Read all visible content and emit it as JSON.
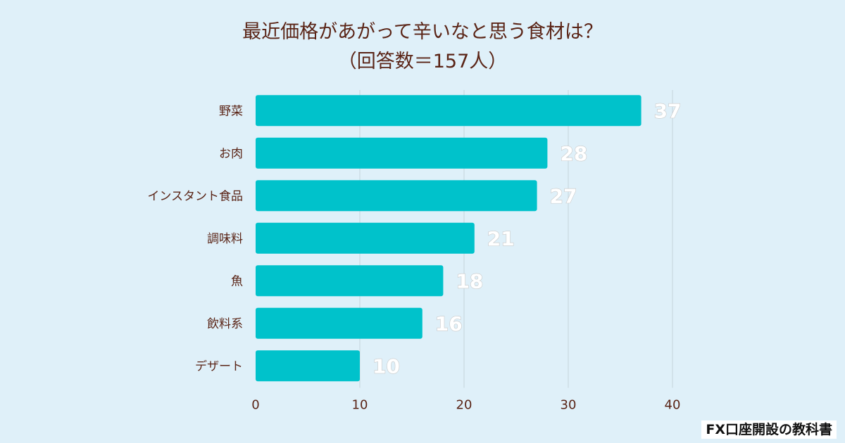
{
  "chart_data": {
    "type": "bar",
    "orientation": "horizontal",
    "title": "最近価格があがって辛いなと思う食材は？",
    "subtitle": "（回答数＝157人）",
    "categories": [
      "野菜",
      "お肉",
      "インスタント食品",
      "調味料",
      "魚",
      "飲料系",
      "デザート"
    ],
    "values": [
      37,
      28,
      27,
      21,
      18,
      16,
      10
    ],
    "xlim": [
      0,
      40
    ],
    "xticks": [
      "0",
      "10",
      "20",
      "30",
      "40"
    ],
    "grid": "vertical",
    "bar_color": "#00c2cb",
    "label_color": "#5a2416"
  },
  "footer": {
    "brand": "FX口座開設の教科書"
  }
}
